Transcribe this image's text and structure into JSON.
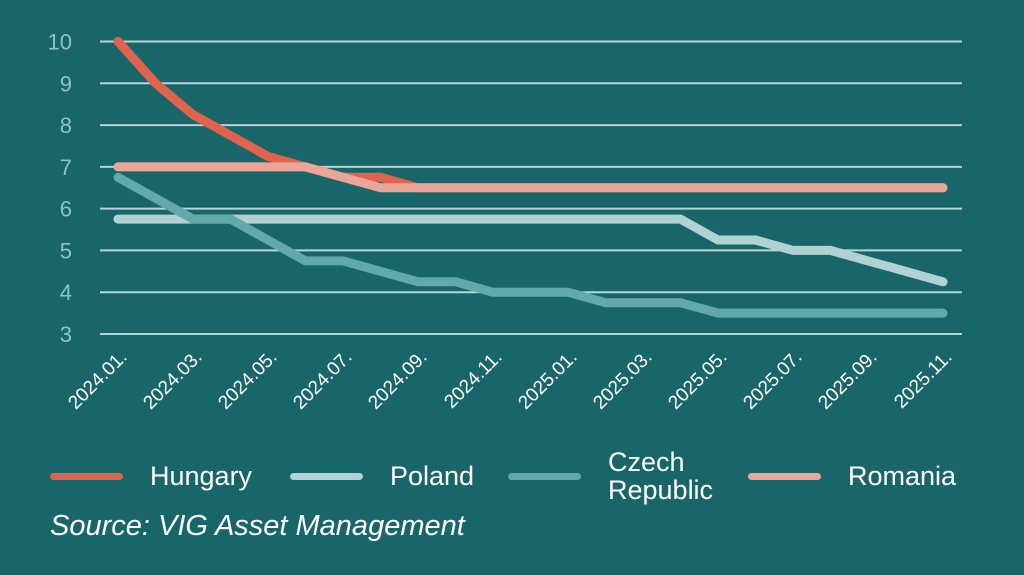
{
  "chart_data": {
    "type": "line",
    "title": "",
    "xlabel": "",
    "ylabel": "",
    "ylim": [
      3,
      10
    ],
    "yticks": [
      3,
      4,
      5,
      6,
      7,
      8,
      9,
      10
    ],
    "grid": true,
    "x": [
      "2024.01.",
      "2024.02.",
      "2024.03.",
      "2024.04.",
      "2024.05.",
      "2024.06.",
      "2024.07.",
      "2024.08.",
      "2024.09.",
      "2024.10.",
      "2024.11.",
      "2024.12.",
      "2025.01.",
      "2025.02.",
      "2025.03.",
      "2025.04.",
      "2025.05.",
      "2025.06.",
      "2025.07.",
      "2025.08.",
      "2025.09.",
      "2025.10.",
      "2025.11."
    ],
    "xtick_labels": [
      "2024.01.",
      "2024.03.",
      "2024.05.",
      "2024.07.",
      "2024.09.",
      "2024.11.",
      "2025.01.",
      "2025.03.",
      "2025.05.",
      "2025.07.",
      "2025.09.",
      "2025.11."
    ],
    "series": [
      {
        "name": "Hungary",
        "color": "#e0644b",
        "values": [
          10,
          9,
          8.25,
          7.75,
          7.25,
          7.0,
          6.75,
          6.75,
          6.5,
          6.5,
          6.5,
          6.5,
          6.5,
          6.5,
          6.5,
          6.5,
          6.5,
          6.5,
          6.5,
          6.5,
          6.5,
          6.5,
          6.5
        ]
      },
      {
        "name": "Poland",
        "color": "#b2d1d3",
        "values": [
          5.75,
          5.75,
          5.75,
          5.75,
          5.75,
          5.75,
          5.75,
          5.75,
          5.75,
          5.75,
          5.75,
          5.75,
          5.75,
          5.75,
          5.75,
          5.75,
          5.25,
          5.25,
          5.0,
          5.0,
          4.75,
          4.5,
          4.25
        ]
      },
      {
        "name": "Czech Republic",
        "color": "#63a8ab",
        "values": [
          6.75,
          6.25,
          5.75,
          5.75,
          5.25,
          4.75,
          4.75,
          4.5,
          4.25,
          4.25,
          4.0,
          4.0,
          4.0,
          3.75,
          3.75,
          3.75,
          3.5,
          3.5,
          3.5,
          3.5,
          3.5,
          3.5,
          3.5
        ]
      },
      {
        "name": "Romania",
        "color": "#eba597",
        "values": [
          7.0,
          7.0,
          7.0,
          7.0,
          7.0,
          7.0,
          6.75,
          6.5,
          6.5,
          6.5,
          6.5,
          6.5,
          6.5,
          6.5,
          6.5,
          6.5,
          6.5,
          6.5,
          6.5,
          6.5,
          6.5,
          6.5,
          6.5
        ]
      }
    ],
    "draw_order": [
      "Poland",
      "Czech Republic",
      "Hungary",
      "Romania"
    ],
    "legend": {
      "placement": "bottom",
      "entries": [
        {
          "label_lines": [
            "Hungary"
          ],
          "color": "#e0644b"
        },
        {
          "label_lines": [
            "Poland"
          ],
          "color": "#b2d1d3"
        },
        {
          "label_lines": [
            "Czech",
            "Republic"
          ],
          "color": "#63a8ab"
        },
        {
          "label_lines": [
            "Romania"
          ],
          "color": "#eba597"
        }
      ]
    },
    "source": "Source: VIG Asset Management"
  },
  "colors": {
    "background": "#19666a",
    "gridline": "#b9d4d5",
    "ytick_text": "#8fc2c3",
    "xtick_text": "#ffffff"
  }
}
